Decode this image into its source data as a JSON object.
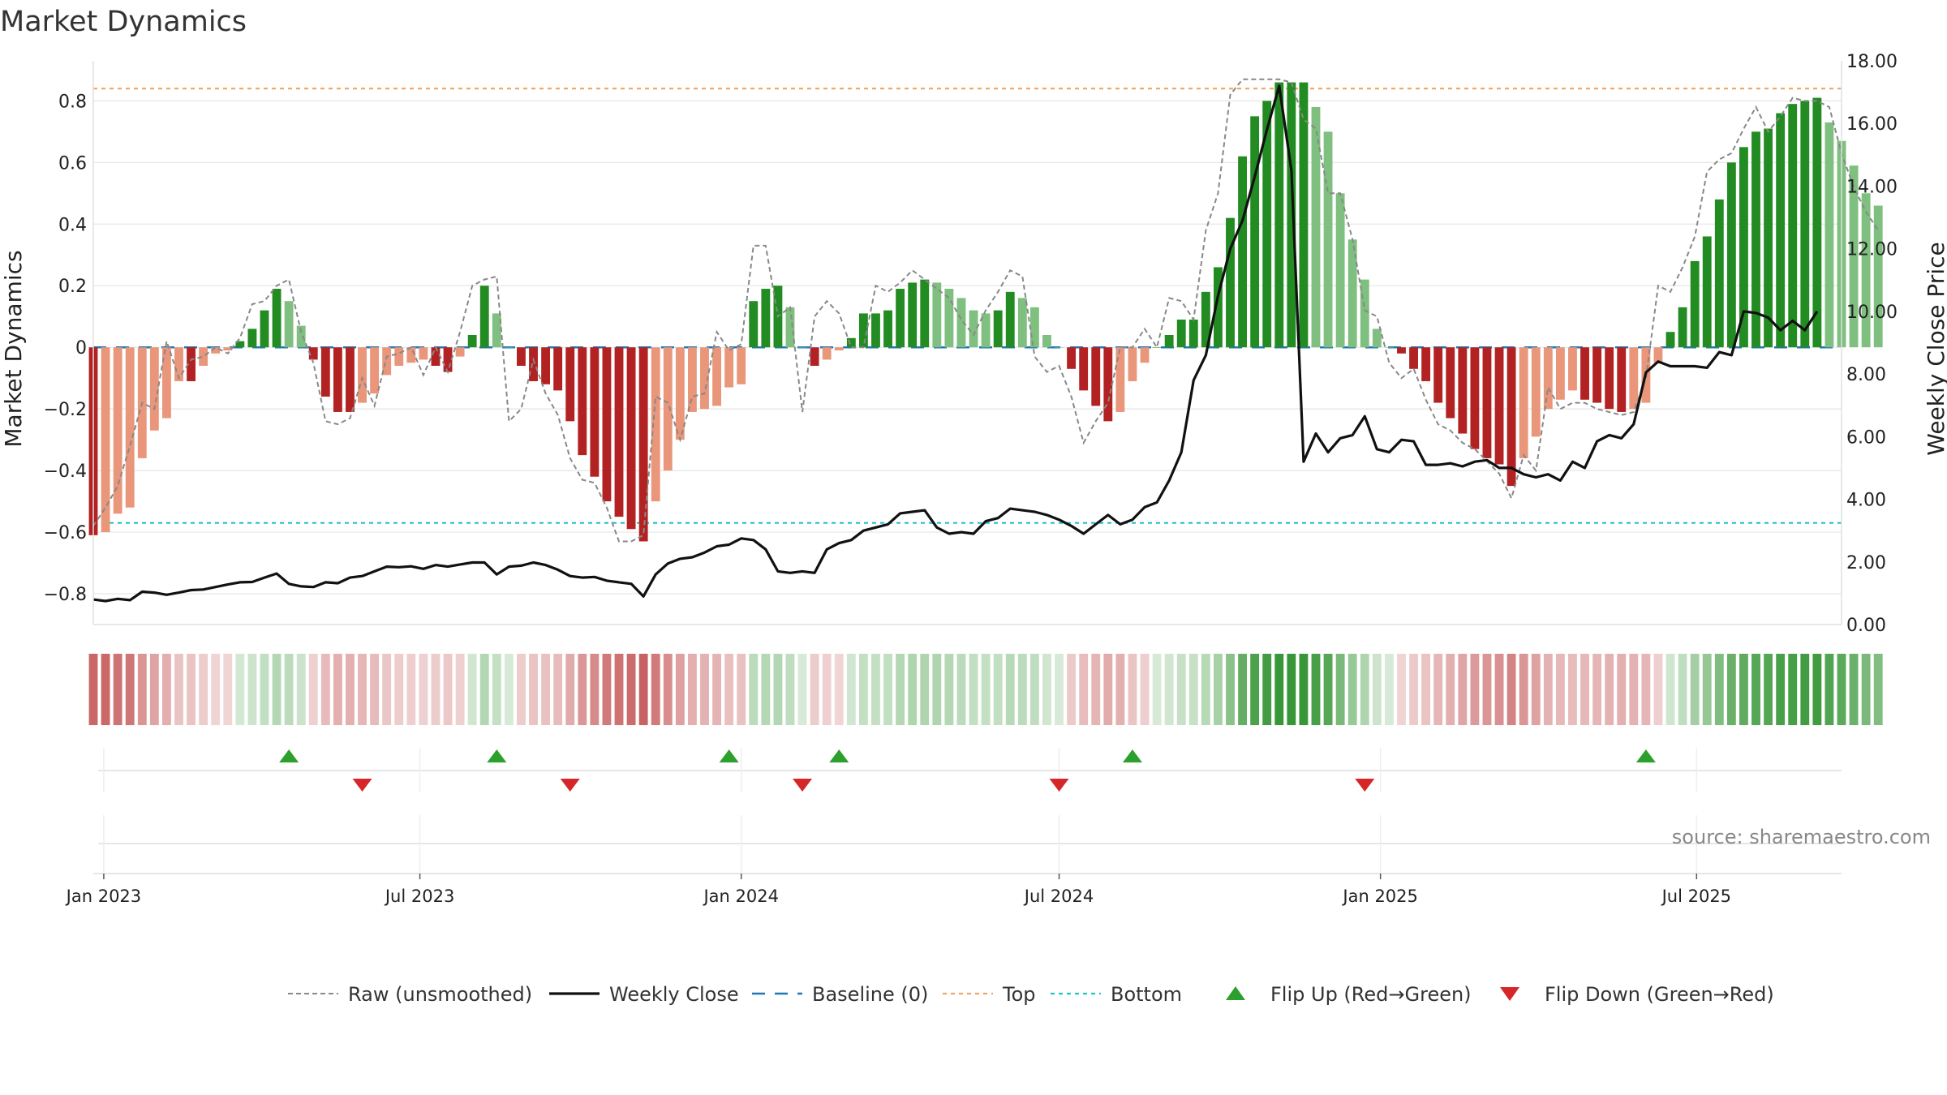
{
  "chart_data": {
    "type": "bar",
    "title": "Market Dynamics",
    "ylabel_left": "Market Dynamics",
    "ylabel_right": "Weekly Close Price",
    "source": "source: sharemaestro.com",
    "x_start": "2022-12-26",
    "x_end": "2025-09-22",
    "ylim_left": [
      -0.9,
      0.93
    ],
    "ylim_right": [
      0,
      18
    ],
    "yticks_left": [
      "0.8",
      "0.6",
      "0.4",
      "0.2",
      "0",
      "−0.2",
      "−0.4",
      "−0.6",
      "−0.8"
    ],
    "yticks_left_values": [
      0.8,
      0.6,
      0.4,
      0.2,
      0,
      -0.2,
      -0.4,
      -0.6,
      -0.8
    ],
    "yticks_right": [
      "18.00",
      "16.00",
      "14.00",
      "12.00",
      "10.00",
      "8.00",
      "6.00",
      "4.00",
      "2.00",
      "0.00"
    ],
    "yticks_right_values": [
      18,
      16,
      14,
      12,
      10,
      8,
      6,
      4,
      2,
      0
    ],
    "xticks": [
      {
        "label": "Jan 2023",
        "date": "2023-01-01"
      },
      {
        "label": "Jul 2023",
        "date": "2023-07-01"
      },
      {
        "label": "Jan 2024",
        "date": "2024-01-01"
      },
      {
        "label": "Jul 2024",
        "date": "2024-07-01"
      },
      {
        "label": "Jan 2025",
        "date": "2025-01-01"
      },
      {
        "label": "Jul 2025",
        "date": "2025-07-01"
      }
    ],
    "top_line": 0.84,
    "bottom_line": -0.57,
    "baseline": 0,
    "grid": true,
    "legend_position": "bottom-center",
    "colors": {
      "dark_green": "#228b22",
      "light_green": "#7fbf7f",
      "dark_red": "#b22222",
      "light_red": "#e9967a",
      "top": "#f4a460",
      "bottom": "#20c4c8",
      "baseline": "#1f77b4",
      "raw": "#888888",
      "close": "#111111",
      "flip_up": "#2ca02c",
      "flip_down": "#d62728"
    },
    "week_start": "2022-12-26",
    "smoothed": [
      -0.61,
      -0.6,
      -0.54,
      -0.52,
      -0.36,
      -0.27,
      -0.23,
      -0.11,
      -0.11,
      -0.06,
      -0.02,
      -0.01,
      0.02,
      0.06,
      0.12,
      0.19,
      0.15,
      0.07,
      -0.04,
      -0.16,
      -0.21,
      -0.21,
      -0.18,
      -0.15,
      -0.09,
      -0.06,
      -0.05,
      -0.04,
      -0.06,
      -0.08,
      -0.03,
      0.04,
      0.2,
      0.11,
      0.0,
      -0.06,
      -0.11,
      -0.12,
      -0.14,
      -0.24,
      -0.35,
      -0.42,
      -0.5,
      -0.55,
      -0.59,
      -0.63,
      -0.5,
      -0.4,
      -0.3,
      -0.21,
      -0.2,
      -0.19,
      -0.13,
      -0.12,
      0.15,
      0.19,
      0.2,
      0.13,
      0.0,
      -0.06,
      -0.04,
      -0.01,
      0.03,
      0.11,
      0.11,
      0.12,
      0.19,
      0.21,
      0.22,
      0.21,
      0.19,
      0.16,
      0.12,
      0.11,
      0.12,
      0.18,
      0.16,
      0.13,
      0.04,
      0.0,
      -0.07,
      -0.14,
      -0.19,
      -0.24,
      -0.21,
      -0.11,
      -0.05,
      0.0,
      0.04,
      0.09,
      0.09,
      0.18,
      0.26,
      0.42,
      0.62,
      0.75,
      0.8,
      0.86,
      0.86,
      0.86,
      0.78,
      0.7,
      0.5,
      0.35,
      0.22,
      0.06,
      0.0,
      -0.02,
      -0.07,
      -0.11,
      -0.18,
      -0.23,
      -0.28,
      -0.33,
      -0.36,
      -0.38,
      -0.45,
      -0.36,
      -0.29,
      -0.2,
      -0.17,
      -0.14,
      -0.17,
      -0.18,
      -0.2,
      -0.21,
      -0.2,
      -0.18,
      -0.05,
      0.05,
      0.13,
      0.28,
      0.36,
      0.48,
      0.6,
      0.65,
      0.7,
      0.71,
      0.76,
      0.79,
      0.8,
      0.81,
      0.73,
      0.67,
      0.59,
      0.5,
      0.46
    ],
    "raw": [
      -0.58,
      -0.52,
      -0.45,
      -0.32,
      -0.18,
      -0.2,
      0.02,
      -0.1,
      -0.04,
      -0.03,
      0.0,
      -0.02,
      0.03,
      0.14,
      0.15,
      0.2,
      0.22,
      0.05,
      -0.05,
      -0.24,
      -0.25,
      -0.23,
      -0.1,
      -0.19,
      -0.03,
      -0.02,
      0.0,
      -0.09,
      0.0,
      -0.08,
      0.05,
      0.2,
      0.22,
      0.23,
      -0.24,
      -0.2,
      -0.04,
      -0.15,
      -0.22,
      -0.36,
      -0.43,
      -0.44,
      -0.52,
      -0.63,
      -0.63,
      -0.61,
      -0.16,
      -0.18,
      -0.3,
      -0.16,
      -0.15,
      0.05,
      -0.01,
      0.01,
      0.33,
      0.33,
      0.1,
      0.13,
      -0.21,
      0.1,
      0.15,
      0.11,
      0.0,
      0.0,
      0.2,
      0.18,
      0.21,
      0.25,
      0.22,
      0.19,
      0.16,
      0.09,
      0.04,
      0.12,
      0.18,
      0.25,
      0.23,
      -0.03,
      -0.08,
      -0.06,
      -0.16,
      -0.31,
      -0.24,
      -0.18,
      0.0,
      0.0,
      0.06,
      0.0,
      0.16,
      0.15,
      0.09,
      0.38,
      0.5,
      0.82,
      0.87,
      0.87,
      0.87,
      0.87,
      0.86,
      0.74,
      0.71,
      0.5,
      0.5,
      0.35,
      0.12,
      0.1,
      -0.05,
      -0.1,
      -0.07,
      -0.17,
      -0.25,
      -0.27,
      -0.31,
      -0.33,
      -0.37,
      -0.41,
      -0.49,
      -0.35,
      -0.4,
      -0.13,
      -0.2,
      -0.18,
      -0.18,
      -0.2,
      -0.21,
      -0.22,
      -0.21,
      -0.1,
      0.2,
      0.18,
      0.26,
      0.36,
      0.57,
      0.61,
      0.63,
      0.71,
      0.78,
      0.7,
      0.75,
      0.81,
      0.8,
      0.8,
      0.78,
      0.63,
      0.52,
      0.44,
      0.38
    ],
    "close": [
      0.8,
      0.75,
      0.82,
      0.78,
      1.05,
      1.02,
      0.95,
      1.02,
      1.1,
      1.12,
      1.2,
      1.28,
      1.35,
      1.36,
      1.5,
      1.63,
      1.3,
      1.22,
      1.2,
      1.35,
      1.32,
      1.5,
      1.55,
      1.7,
      1.85,
      1.83,
      1.86,
      1.78,
      1.9,
      1.85,
      1.92,
      1.98,
      1.98,
      1.6,
      1.85,
      1.88,
      1.98,
      1.9,
      1.75,
      1.55,
      1.5,
      1.52,
      1.4,
      1.35,
      1.3,
      0.9,
      1.6,
      1.95,
      2.1,
      2.15,
      2.3,
      2.5,
      2.55,
      2.75,
      2.7,
      2.4,
      1.7,
      1.65,
      1.7,
      1.65,
      2.4,
      2.6,
      2.7,
      3.0,
      3.1,
      3.2,
      3.55,
      3.6,
      3.65,
      3.1,
      2.9,
      2.95,
      2.9,
      3.3,
      3.4,
      3.7,
      3.65,
      3.6,
      3.5,
      3.35,
      3.15,
      2.9,
      3.2,
      3.5,
      3.2,
      3.35,
      3.75,
      3.9,
      4.6,
      5.5,
      7.8,
      8.6,
      10.5,
      12.0,
      12.9,
      14.3,
      15.8,
      17.2,
      14.5,
      5.2,
      6.1,
      5.5,
      5.95,
      6.05,
      6.65,
      5.6,
      5.5,
      5.9,
      5.85,
      5.1,
      5.1,
      5.15,
      5.05,
      5.2,
      5.25,
      5.0,
      5.0,
      4.8,
      4.7,
      4.8,
      4.6,
      5.2,
      5.0,
      5.85,
      6.05,
      5.95,
      6.4,
      8.05,
      8.4,
      8.25,
      8.25,
      8.25,
      8.2,
      8.7,
      8.6,
      10.0,
      9.95,
      9.8,
      9.4,
      9.7,
      9.4,
      10.0
    ],
    "flip_up_dates": [
      "2023-04-17",
      "2023-08-14",
      "2023-12-25",
      "2024-02-26",
      "2024-08-12",
      "2025-06-02"
    ],
    "flip_down_dates": [
      "2023-05-29",
      "2023-09-25",
      "2024-02-05",
      "2024-07-01",
      "2024-12-23"
    ],
    "legend": [
      {
        "key": "raw",
        "label": "Raw (unsmoothed)"
      },
      {
        "key": "close",
        "label": "Weekly Close"
      },
      {
        "key": "baseline",
        "label": "Baseline (0)"
      },
      {
        "key": "top",
        "label": "Top"
      },
      {
        "key": "bottom",
        "label": "Bottom"
      },
      {
        "key": "flip_up",
        "label": "Flip Up (Red→Green)"
      },
      {
        "key": "flip_down",
        "label": "Flip Down (Green→Red)"
      }
    ]
  }
}
